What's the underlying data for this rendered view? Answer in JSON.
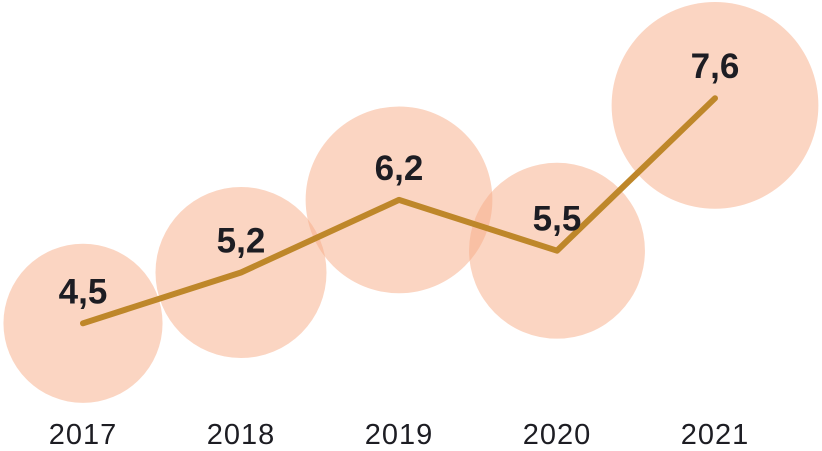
{
  "chart_data": {
    "type": "line",
    "variant": "bubble-line",
    "title": "",
    "categories": [
      "2017",
      "2018",
      "2019",
      "2020",
      "2021"
    ],
    "series": [
      {
        "name": "value",
        "values": [
          4.5,
          5.2,
          6.2,
          5.5,
          7.6
        ],
        "value_labels": [
          "4,5",
          "5,2",
          "6,2",
          "5,5",
          "7,6"
        ]
      }
    ],
    "decimal_separator": ",",
    "bubble_area_proportional_to_value": true,
    "axes": {
      "x_tick_labels": [
        "2017",
        "2018",
        "2019",
        "2020",
        "2021"
      ],
      "y_axis_visible": false,
      "x_axis_line_visible": false,
      "grid": false
    },
    "legend": {
      "visible": false
    },
    "colors": {
      "bubble_fill": "#F7AB85",
      "bubble_opacity": 0.5,
      "line": "#BE872A",
      "label_text": "#1D1D23",
      "background": "#FFFFFF"
    }
  }
}
